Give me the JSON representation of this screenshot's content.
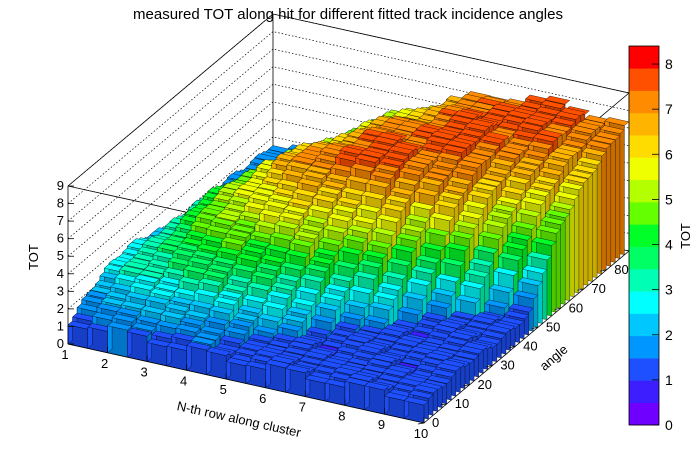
{
  "chart_data": {
    "type": "lego3d",
    "title": "measured TOT along hit for different fitted track incidence angles",
    "xlabel": "N-th row along cluster",
    "ylabel": "angle",
    "zlabel": "TOT",
    "palette_axis_label": "TOT",
    "x_range": [
      1,
      10
    ],
    "y_range": [
      0,
      90
    ],
    "z_range": [
      0,
      9
    ],
    "x_ticks": [
      "1",
      "2",
      "3",
      "4",
      "5",
      "6",
      "7",
      "8",
      "9",
      "10"
    ],
    "y_ticks": [
      "0",
      "10",
      "20",
      "30",
      "40",
      "50",
      "60",
      "70",
      "80"
    ],
    "z_ticks": [
      "0",
      "1",
      "2",
      "3",
      "4",
      "5",
      "6",
      "7",
      "8",
      "9"
    ],
    "palette_ticks": [
      "0",
      "1",
      "2",
      "3",
      "4",
      "5",
      "6",
      "7",
      "8"
    ],
    "palette_range": [
      0,
      8.4
    ],
    "palette_colors": [
      "#6f00ff",
      "#3c1eff",
      "#1e50ff",
      "#0096ff",
      "#00c8ff",
      "#00ffff",
      "#00ffb4",
      "#00ff64",
      "#00ff28",
      "#64ff00",
      "#b4ff00",
      "#f0ff00",
      "#ffdc00",
      "#ffb400",
      "#ff8c00",
      "#ff5000",
      "#ff0000"
    ],
    "grid": true,
    "colorbar": "right",
    "nbins_x": 18,
    "nbins_y": 45,
    "surface_description": "TOT rises with angle toward a ridge near 6-8 at mid rows, falls toward low values at high row index and low angle"
  }
}
